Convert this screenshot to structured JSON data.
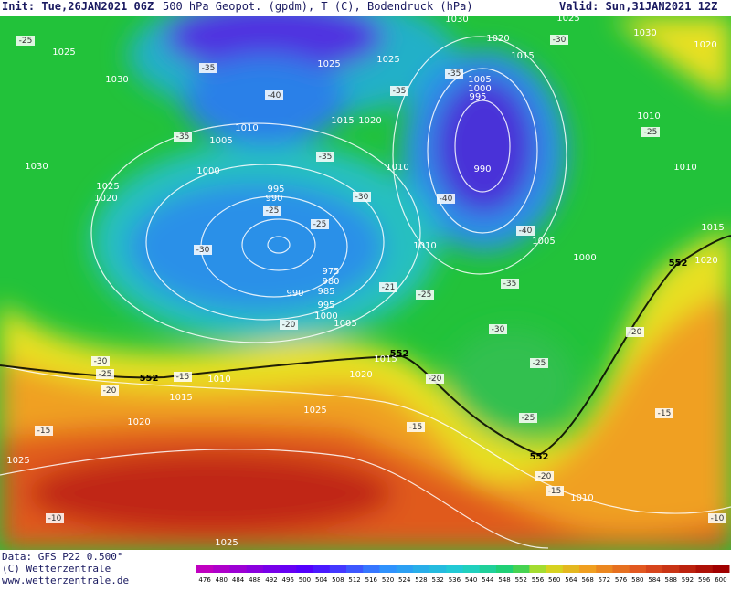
{
  "header": {
    "init": "Init: Tue,26JAN2021 06Z",
    "title": "500 hPa Geopot. (gpdm), T (C), Bodendruck (hPa)",
    "valid": "Valid: Sun,31JAN2021 12Z"
  },
  "footer": {
    "data": "Data: GFS P22 0.500°",
    "copyright": "(C) Wetterzentrale",
    "url": "www.wetterzentrale.de"
  },
  "colorbar": {
    "ticks": [
      476,
      480,
      484,
      488,
      492,
      496,
      500,
      504,
      508,
      512,
      516,
      520,
      524,
      528,
      532,
      536,
      540,
      544,
      548,
      552,
      556,
      560,
      564,
      568,
      572,
      576,
      580,
      584,
      588,
      592,
      596,
      600
    ]
  },
  "map_labels": {
    "pressure": [
      "1025",
      "1030",
      "1030",
      "1025",
      "1020",
      "1005",
      "1010",
      "1000",
      "995",
      "990",
      "975",
      "980",
      "985",
      "990",
      "995",
      "1000",
      "1005",
      "1010",
      "1015",
      "1020",
      "1025",
      "1025",
      "1020",
      "1015",
      "1025",
      "1025",
      "1015",
      "1020",
      "1010",
      "1030",
      "1020",
      "1015",
      "1005",
      "1000",
      "995",
      "990",
      "1010",
      "1005",
      "1000",
      "1010",
      "1010",
      "1015",
      "1020",
      "1030",
      "1025",
      "1020",
      "1010",
      "1025"
    ],
    "temperature": [
      "-25",
      "-35",
      "-40",
      "-35",
      "-35",
      "-30",
      "-25",
      "-25",
      "-30",
      "-20",
      "-35",
      "-35",
      "-40",
      "-40",
      "-25",
      "-30",
      "-35",
      "-30",
      "-21",
      "-25",
      "-20",
      "-25",
      "-25",
      "-30",
      "-25",
      "-20",
      "-15",
      "-20",
      "-15",
      "-15",
      "-20",
      "-15",
      "-15",
      "-10",
      "-10"
    ],
    "contour552": [
      "552",
      "552",
      "552",
      "552"
    ]
  }
}
